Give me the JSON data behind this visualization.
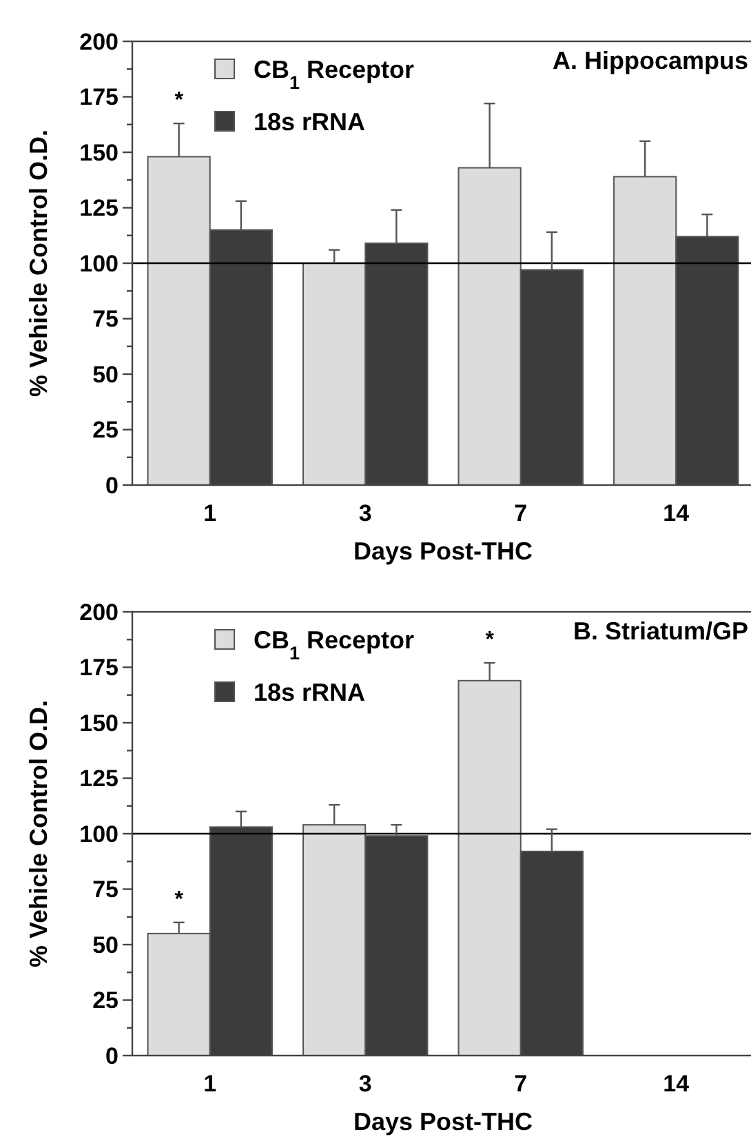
{
  "chart_data": [
    {
      "type": "bar",
      "title": "A. Hippocampus",
      "xlabel": "Days Post-THC",
      "ylabel": "% Vehicle Control O.D.",
      "categories": [
        "1",
        "3",
        "7",
        "14"
      ],
      "series": [
        {
          "name": "CB$_{1}$ Receptor",
          "color": "#dcdcdc",
          "values": [
            148,
            100,
            143,
            139
          ],
          "errors": [
            [
              148,
              163
            ],
            [
              100,
              106
            ],
            [
              143,
              172
            ],
            [
              139,
              155
            ]
          ]
        },
        {
          "name": "18s rRNA",
          "color": "#3c3c3c",
          "values": [
            115,
            109,
            97,
            112
          ],
          "errors": [
            [
              115,
              128
            ],
            [
              109,
              124
            ],
            [
              97,
              114
            ],
            [
              112,
              122
            ]
          ]
        }
      ],
      "ylim": [
        0,
        200
      ],
      "yticks": [
        0,
        {
          "value": 12.5,
          "label": null
        },
        25,
        {
          "value": 37.5,
          "label": null
        },
        50,
        {
          "value": 62.5,
          "label": null
        },
        75,
        {
          "value": 87.5,
          "label": null
        },
        100,
        {
          "value": 112.5,
          "label": null
        },
        125,
        {
          "value": 137.5,
          "label": null
        },
        150,
        {
          "value": 162.5,
          "label": null
        },
        175,
        {
          "value": 187.5,
          "label": null
        },
        200
      ],
      "ref_lines": [
        {
          "axis": "y",
          "value": 100,
          "color": "#000000"
        }
      ],
      "annotations": [
        {
          "text": "*",
          "x": "1",
          "y": 148
        }
      ],
      "legend": "top left",
      "grid": false
    },
    {
      "type": "bar",
      "title": "B. Striatum/GP",
      "xlabel": "Days Post-THC",
      "ylabel": "% Vehicle Control O.D.",
      "categories": [
        "1",
        "3",
        "7",
        "14"
      ],
      "series": [
        {
          "name": "CB$_{1}$ Receptor",
          "color": "#dcdcdc",
          "values": [
            55,
            104,
            169,
            null
          ],
          "errors": [
            [
              55,
              60
            ],
            [
              104,
              113
            ],
            [
              169,
              177
            ],
            null
          ]
        },
        {
          "name": "18s rRNA",
          "color": "#3c3c3c",
          "values": [
            103,
            99,
            92,
            null
          ],
          "errors": [
            [
              103,
              110
            ],
            [
              99,
              104
            ],
            [
              92,
              102
            ],
            null
          ]
        }
      ],
      "ylim": [
        0,
        200
      ],
      "yticks": [
        0,
        {
          "value": 12.5,
          "label": null
        },
        25,
        {
          "value": 37.5,
          "label": null
        },
        50,
        {
          "value": 62.5,
          "label": null
        },
        75,
        {
          "value": 87.5,
          "label": null
        },
        100,
        {
          "value": 112.5,
          "label": null
        },
        125,
        {
          "value": 137.5,
          "label": null
        },
        150,
        {
          "value": 162.5,
          "label": null
        },
        175,
        {
          "value": 187.5,
          "label": null
        },
        200
      ],
      "ref_lines": [
        {
          "axis": "y",
          "value": 100,
          "color": "#000000"
        }
      ],
      "annotations": [
        {
          "text": "*",
          "x": "1",
          "y": 55
        },
        {
          "text": "*",
          "x": "7",
          "y": 169
        }
      ],
      "legend": "top left",
      "grid": false
    }
  ]
}
